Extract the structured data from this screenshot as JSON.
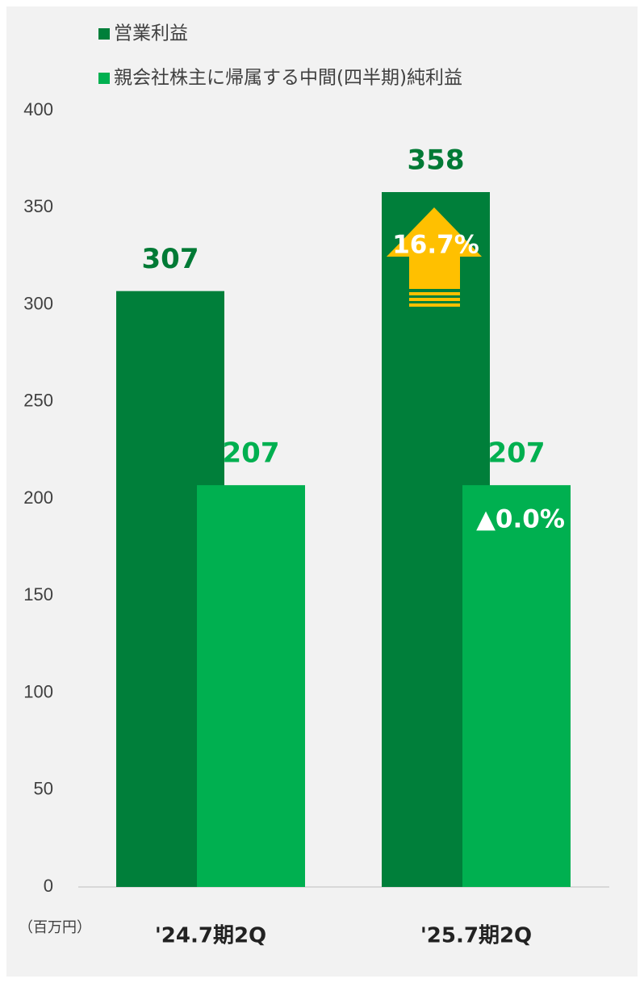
{
  "chart_data": {
    "type": "bar",
    "categories": [
      "'24.7期2Q",
      "'25.7期2Q"
    ],
    "series": [
      {
        "name": "営業利益",
        "color": "#007f3a",
        "values": [
          307,
          358
        ]
      },
      {
        "name": "親会社株主に帰属する中間(四半期)純利益",
        "color": "#00b050",
        "values": [
          207,
          207
        ]
      }
    ],
    "ylim": [
      0,
      400
    ],
    "yticks": [
      0,
      50,
      100,
      150,
      200,
      250,
      300,
      350,
      400
    ],
    "annotations": [
      "16.7%",
      "▲0.0%"
    ],
    "unit_label": "（百万円）",
    "legend": "top-left"
  }
}
